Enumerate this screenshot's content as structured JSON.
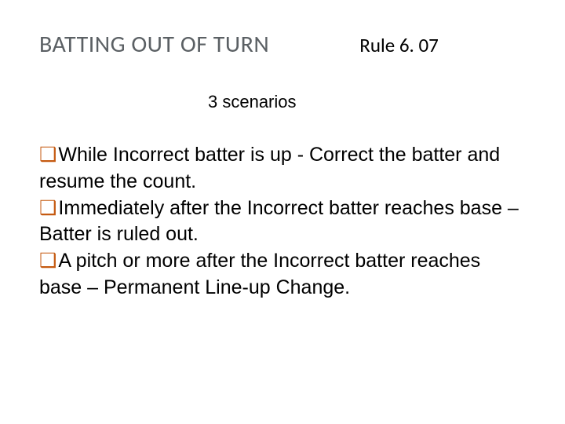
{
  "header": {
    "title": "BATTING OUT OF TURN",
    "rule": "Rule 6. 07"
  },
  "subheading": "3 scenarios",
  "bullets": [
    "While Incorrect batter is up - Correct the batter and resume the count.",
    "Immediately after the Incorrect batter reaches base – Batter is ruled out.",
    "A pitch or more after the Incorrect batter reaches base – Permanent Line-up Change."
  ],
  "colors": {
    "title_color": "#5b6064",
    "bullet_color": "#c55a11",
    "text_color": "#000000",
    "background": "#ffffff"
  },
  "bullet_glyph": "❑"
}
